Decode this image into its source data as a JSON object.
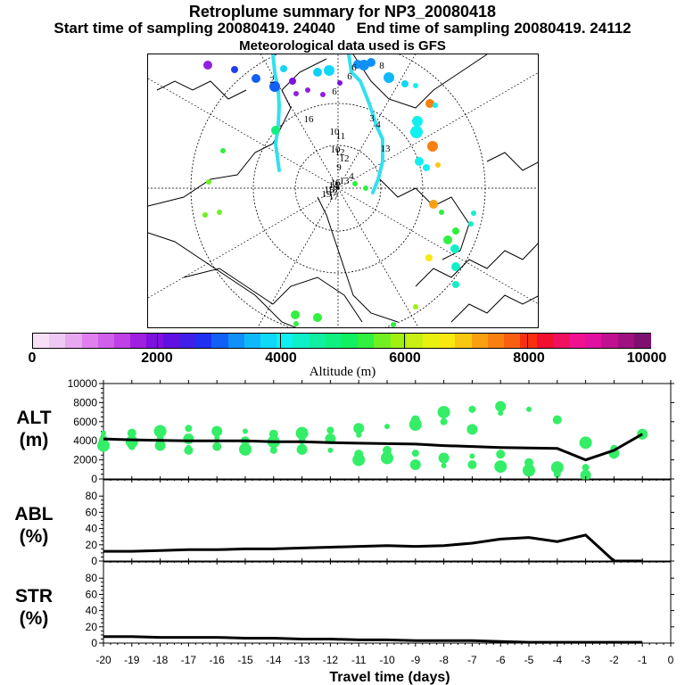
{
  "title": "Retroplume summary for NP3_20080418",
  "sampling": "Start time of sampling 20080419. 24040     End time of sampling 20080419. 24112",
  "met": "Meteorological data used is GFS",
  "colors": {
    "plume": "#33e0ee",
    "dots": "#33ee66",
    "line": "#000000",
    "scale": [
      "#f7e0f7",
      "#f0c8f5",
      "#e8a8f0",
      "#e080ee",
      "#d060ea",
      "#c040e8",
      "#a020e0",
      "#8010e0",
      "#6010e0",
      "#4020e8",
      "#2030f0",
      "#1060f5",
      "#1090f8",
      "#10b8fa",
      "#10d8f8",
      "#10f0f0",
      "#10f0c8",
      "#10f0a0",
      "#10f080",
      "#10f060",
      "#30f040",
      "#70f020",
      "#a0f010",
      "#c8f010",
      "#e8f010",
      "#f8e810",
      "#f8c810",
      "#f8a010",
      "#f88010",
      "#f86010",
      "#f83010",
      "#f01030",
      "#f01060",
      "#f01090",
      "#e010a0",
      "#c01090",
      "#a01080",
      "#801070"
    ]
  },
  "map": {
    "labels": [
      "1",
      "2",
      "3",
      "4",
      "5",
      "6",
      "7",
      "8",
      "9",
      "10",
      "11",
      "12",
      "13",
      "14",
      "15",
      "16",
      "17",
      "18",
      "19",
      "20"
    ]
  },
  "colorbar": {
    "ticks": [
      "0",
      "2000",
      "4000",
      "6000",
      "8000",
      "10000"
    ],
    "label": "Altitude (m)"
  },
  "chart_data": [
    {
      "type": "line",
      "panel": "ALT",
      "ylabel": "ALT\n(m)",
      "ylabel_line1": "ALT",
      "ylabel_line2": "(m)",
      "yticks": [
        "0",
        "2000",
        "4000",
        "6000",
        "8000",
        "10000"
      ],
      "ylim": [
        0,
        10000
      ],
      "xlim": [
        -20,
        0
      ],
      "x": [
        -20,
        -19,
        -18,
        -17,
        -16,
        -15,
        -14,
        -13,
        -12,
        -11,
        -10,
        -9,
        -8,
        -7,
        -6,
        -5,
        -4,
        -3,
        -2,
        -1
      ],
      "mean": [
        4200,
        4100,
        4050,
        4000,
        4000,
        4000,
        3900,
        3900,
        3800,
        3750,
        3700,
        3650,
        3500,
        3400,
        3300,
        3250,
        3200,
        2000,
        3000,
        4700
      ],
      "clusters": [
        [
          [
            -20,
            4800
          ],
          [
            -20,
            4100
          ],
          [
            -20,
            3500
          ]
        ],
        [
          [
            -19,
            4800
          ],
          [
            -19,
            3900
          ],
          [
            -19,
            3400
          ]
        ],
        [
          [
            -18,
            5000
          ],
          [
            -18,
            4200
          ],
          [
            -18,
            3500
          ]
        ],
        [
          [
            -17,
            5300
          ],
          [
            -17,
            4200
          ],
          [
            -17,
            3300
          ],
          [
            -17,
            3000
          ]
        ],
        [
          [
            -16,
            5000
          ],
          [
            -16,
            4300
          ],
          [
            -16,
            3400
          ]
        ],
        [
          [
            -15,
            5000
          ],
          [
            -15,
            4000
          ],
          [
            -15,
            3100
          ]
        ],
        [
          [
            -14,
            4700
          ],
          [
            -14,
            3900
          ],
          [
            -14,
            3000
          ]
        ],
        [
          [
            -13,
            4800
          ],
          [
            -13,
            4000
          ],
          [
            -13,
            3100
          ]
        ],
        [
          [
            -12,
            5100
          ],
          [
            -12,
            4200
          ],
          [
            -12,
            3000
          ]
        ],
        [
          [
            -11,
            5300
          ],
          [
            -11,
            4600
          ],
          [
            -11,
            2600
          ],
          [
            -11,
            2000
          ]
        ],
        [
          [
            -10,
            5500
          ],
          [
            -10,
            3000
          ],
          [
            -10,
            2200
          ]
        ],
        [
          [
            -9,
            6200
          ],
          [
            -9,
            5700
          ],
          [
            -9,
            2700
          ],
          [
            -9,
            1500
          ]
        ],
        [
          [
            -8,
            7000
          ],
          [
            -8,
            6000
          ],
          [
            -8,
            2200
          ],
          [
            -8,
            1400
          ]
        ],
        [
          [
            -7,
            7300
          ],
          [
            -7,
            5200
          ],
          [
            -7,
            2400
          ],
          [
            -7,
            1500
          ]
        ],
        [
          [
            -6,
            7600
          ],
          [
            -6,
            6900
          ],
          [
            -6,
            2600
          ],
          [
            -6,
            1300
          ]
        ],
        [
          [
            -5,
            7300
          ],
          [
            -5,
            1700
          ],
          [
            -5,
            900
          ]
        ],
        [
          [
            -4,
            6200
          ],
          [
            -4,
            1200
          ],
          [
            -4,
            500
          ]
        ],
        [
          [
            -3,
            3800
          ],
          [
            -3,
            1200
          ],
          [
            -3,
            400
          ]
        ],
        [
          [
            -2,
            3200
          ],
          [
            -2,
            2700
          ],
          [
            -2,
            2400
          ]
        ],
        [
          [
            -1,
            4700
          ],
          [
            -1,
            4400
          ]
        ]
      ]
    },
    {
      "type": "line",
      "panel": "ABL",
      "ylabel_line1": "ABL",
      "ylabel_line2": "(%)",
      "yticks": [
        "0",
        "20",
        "40",
        "60",
        "80"
      ],
      "ylim": [
        0,
        100
      ],
      "x": [
        -20,
        -19,
        -18,
        -17,
        -16,
        -15,
        -14,
        -13,
        -12,
        -11,
        -10,
        -9,
        -8,
        -7,
        -6,
        -5,
        -4,
        -3,
        -2,
        -1
      ],
      "values": [
        12,
        12,
        13,
        14,
        14,
        15,
        15,
        16,
        17,
        18,
        19,
        18,
        19,
        22,
        27,
        29,
        24,
        32,
        0,
        0
      ]
    },
    {
      "type": "line",
      "panel": "STR",
      "ylabel_line1": "STR",
      "ylabel_line2": "(%)",
      "yticks": [
        "0",
        "20",
        "40",
        "60",
        "80"
      ],
      "ylim": [
        0,
        100
      ],
      "x": [
        -20,
        -19,
        -18,
        -17,
        -16,
        -15,
        -14,
        -13,
        -12,
        -11,
        -10,
        -9,
        -8,
        -7,
        -6,
        -5,
        -4,
        -3,
        -2,
        -1
      ],
      "values": [
        8,
        8,
        7,
        7,
        7,
        6,
        6,
        5,
        5,
        4,
        4,
        3,
        3,
        3,
        2,
        1,
        1,
        1,
        1,
        1
      ]
    }
  ],
  "xaxis": {
    "ticks": [
      "-20",
      "-19",
      "-18",
      "-17",
      "-16",
      "-15",
      "-14",
      "-13",
      "-12",
      "-11",
      "-10",
      "-9",
      "-8",
      "-7",
      "-6",
      "-5",
      "-4",
      "-3",
      "-2",
      "-1",
      "0"
    ],
    "label": "Travel time (days)"
  }
}
